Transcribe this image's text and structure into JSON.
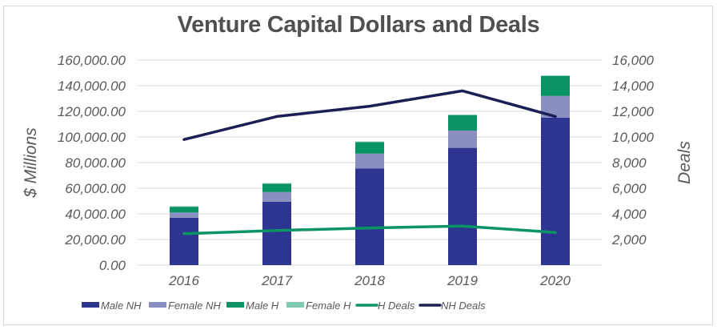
{
  "chart_data": {
    "type": "bar",
    "title": "Venture Capital Dollars and Deals",
    "categories": [
      "2016",
      "2017",
      "2018",
      "2019",
      "2020"
    ],
    "ylabel": "$ Millions",
    "y2label": "Deals",
    "ylim": [
      0,
      160000
    ],
    "y2lim": [
      0,
      16000
    ],
    "yticks": [
      "0.00",
      "20,000.00",
      "40,000.00",
      "60,000.00",
      "80,000.00",
      "100,000.00",
      "120,000.00",
      "140,000.00",
      "160,000.00"
    ],
    "y2ticks": [
      "2,000",
      "4,000",
      "6,000",
      "8,000",
      "10,000",
      "12,000",
      "14,000",
      "16,000"
    ],
    "y2tick_values": [
      2000,
      4000,
      6000,
      8000,
      10000,
      12000,
      14000,
      16000
    ],
    "ytick_values": [
      0,
      20000,
      40000,
      60000,
      80000,
      100000,
      120000,
      140000,
      160000
    ],
    "grid": true,
    "legend_position": "bottom",
    "stacked_series": [
      {
        "name": "Male NH",
        "color": "#2e3590",
        "values": [
          37000,
          49500,
          75500,
          91500,
          115000
        ]
      },
      {
        "name": "Female NH",
        "color": "#8a8fc2",
        "values": [
          4000,
          7500,
          11500,
          13500,
          17000
        ]
      },
      {
        "name": "Male H",
        "color": "#0a9466",
        "values": [
          4500,
          6500,
          9000,
          12000,
          15500
        ]
      },
      {
        "name": "Female H",
        "color": "#7fcbb0",
        "values": [
          500,
          500,
          500,
          500,
          500
        ]
      }
    ],
    "line_series": [
      {
        "name": "H Deals",
        "color": "#0a9466",
        "axis": "right",
        "values": [
          2450,
          2700,
          2900,
          3050,
          2550
        ]
      },
      {
        "name": "NH Deals",
        "color": "#1c1f54",
        "axis": "right",
        "values": [
          9800,
          11600,
          12400,
          13600,
          11600
        ]
      }
    ],
    "legend": [
      "Male NH",
      "Female NH",
      "Male H",
      "Female H",
      "H Deals",
      "NH Deals"
    ]
  }
}
